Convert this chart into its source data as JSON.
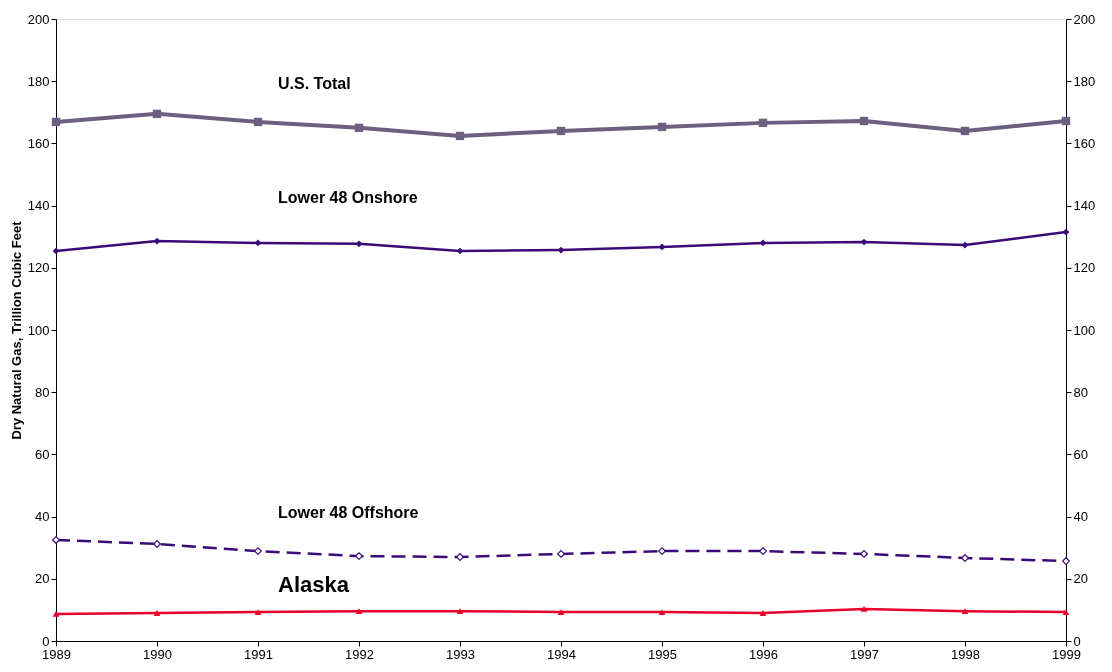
{
  "chart_data": {
    "type": "line",
    "ylabel": "Dry Natural Gas, Trillion Cubic Feet",
    "x": [
      1989,
      1990,
      1991,
      1992,
      1993,
      1994,
      1995,
      1996,
      1997,
      1998,
      1999
    ],
    "xlim": [
      1989,
      1999
    ],
    "xticks": [
      1989,
      1990,
      1991,
      1992,
      1993,
      1994,
      1995,
      1996,
      1997,
      1998,
      1999
    ],
    "ylim": [
      0,
      200
    ],
    "yticks": [
      0,
      20,
      40,
      60,
      80,
      100,
      120,
      140,
      160,
      180,
      200
    ],
    "y2lim": [
      0,
      200
    ],
    "y2ticks": [
      0,
      20,
      40,
      60,
      80,
      100,
      120,
      140,
      160,
      180,
      200
    ],
    "grid": false,
    "legend": false,
    "series": [
      {
        "name": "U.S. Total",
        "color": "#6b6080",
        "marker": "square",
        "line_style": "solid",
        "values": [
          166.9,
          169.5,
          166.9,
          165.0,
          162.4,
          164.0,
          165.3,
          166.6,
          167.2,
          164.0,
          167.2
        ]
      },
      {
        "name": "Lower 48 Onshore",
        "color": "#3c0a78",
        "marker": "diamond",
        "line_style": "solid",
        "axis": "y2",
        "values": [
          125.4,
          128.6,
          128.0,
          127.7,
          125.4,
          125.7,
          126.7,
          128.0,
          128.3,
          127.3,
          131.5
        ]
      },
      {
        "name": "Lower 48 Offshore",
        "color": "#3c0a78",
        "marker": "diamond",
        "line_style": "dashed",
        "values": [
          32.5,
          31.2,
          28.9,
          27.3,
          27.0,
          28.0,
          28.9,
          28.9,
          28.0,
          26.7,
          25.7
        ]
      },
      {
        "name": "Alaska",
        "color": "#e8002a",
        "marker": "triangle",
        "line_style": "solid",
        "values": [
          8.7,
          9.0,
          9.3,
          9.6,
          9.6,
          9.3,
          9.3,
          9.0,
          10.3,
          9.6,
          9.3
        ]
      }
    ]
  }
}
